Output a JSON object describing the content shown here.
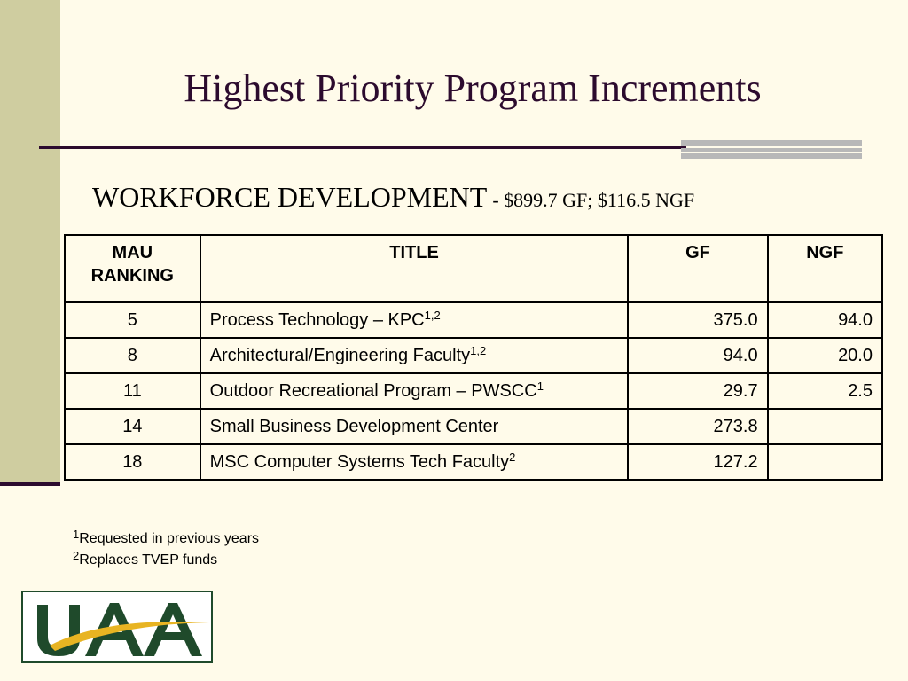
{
  "title": "Highest Priority Program Increments",
  "subtitle": {
    "main": "WORKFORCE DEVELOPMENT",
    "detail": "- $899.7 GF; $116.5 NGF"
  },
  "table": {
    "headers": {
      "rank_line1": "MAU",
      "rank_line2": "RANKING",
      "title": "TITLE",
      "gf": "GF",
      "ngf": "NGF"
    },
    "rows": [
      {
        "rank": "5",
        "title": "Process Technology – KPC",
        "sup": "1,2",
        "gf": "375.0",
        "ngf": "94.0"
      },
      {
        "rank": "8",
        "title": "Architectural/Engineering Faculty",
        "sup": "1,2",
        "gf": "94.0",
        "ngf": "20.0"
      },
      {
        "rank": "11",
        "title": "Outdoor Recreational Program – PWSCC",
        "sup": "1",
        "gf": "29.7",
        "ngf": "2.5"
      },
      {
        "rank": "14",
        "title": "Small Business Development Center",
        "sup": "",
        "gf": "273.8",
        "ngf": ""
      },
      {
        "rank": "18",
        "title": "MSC Computer Systems Tech Faculty",
        "sup": "2",
        "gf": "127.2",
        "ngf": ""
      }
    ]
  },
  "footnotes": [
    {
      "mark": "1",
      "text": "Requested in previous years"
    },
    {
      "mark": "2",
      "text": "Replaces TVEP funds"
    }
  ],
  "logo": {
    "text": "UAA",
    "colors": {
      "letters": "#1f4a2b",
      "swoosh": "#e8b422"
    }
  },
  "colors": {
    "background": "#fffbea",
    "side_band": "#cfcda0",
    "title": "#2c0b2e",
    "accent_bars": "#b8b8b8"
  }
}
